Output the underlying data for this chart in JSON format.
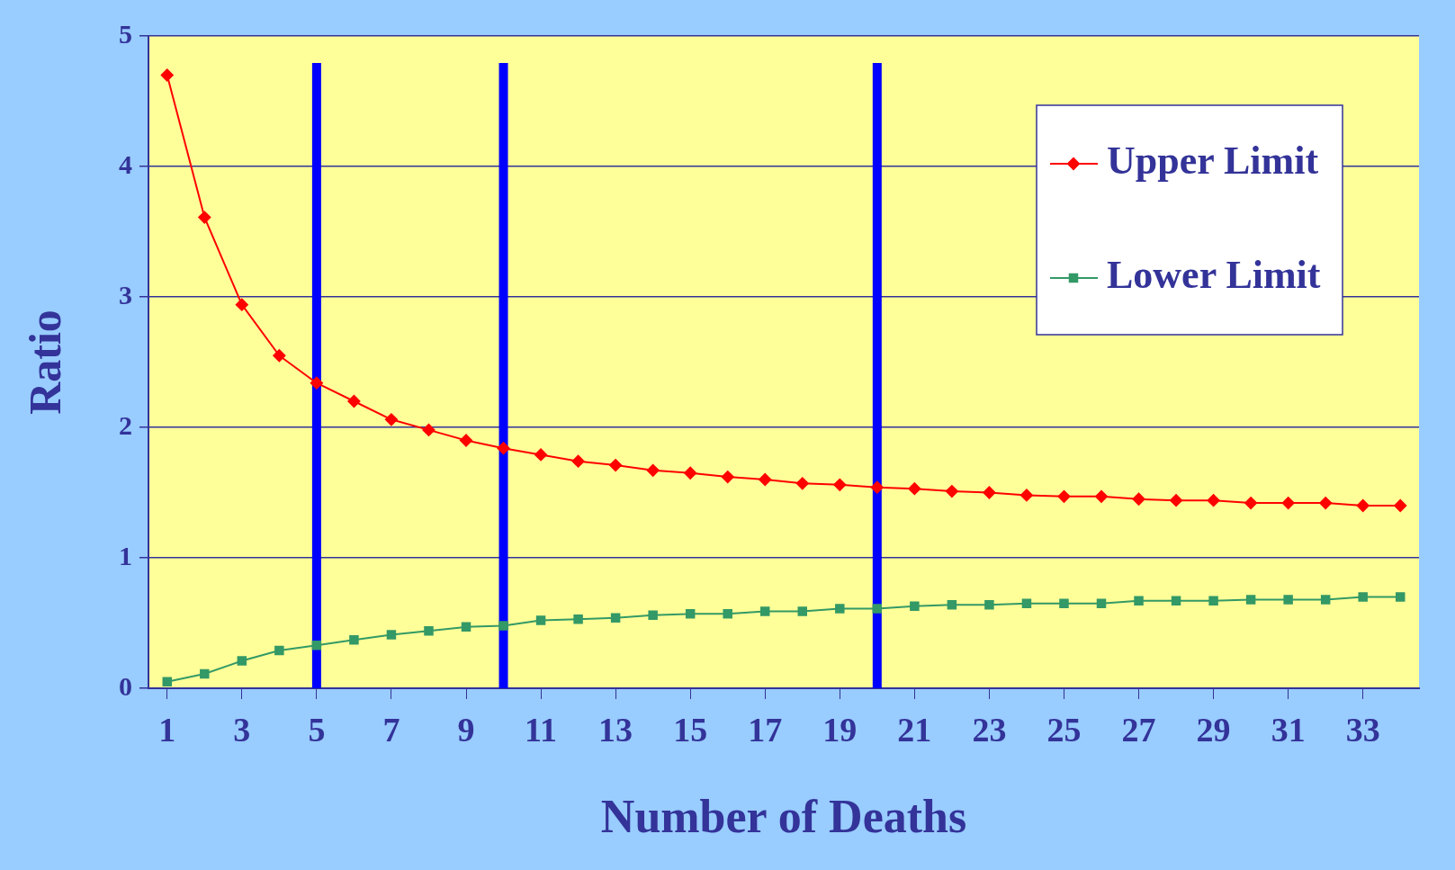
{
  "chart_data": {
    "type": "line",
    "xlabel": "Number of Deaths",
    "ylabel": "Ratio",
    "x": [
      1,
      2,
      3,
      4,
      5,
      6,
      7,
      8,
      9,
      10,
      11,
      12,
      13,
      14,
      15,
      16,
      17,
      18,
      19,
      20,
      21,
      22,
      23,
      24,
      25,
      26,
      27,
      28,
      29,
      30,
      31,
      32,
      33,
      34
    ],
    "xlim": [
      0.5,
      34.5
    ],
    "xticks": [
      1,
      3,
      5,
      7,
      9,
      11,
      13,
      15,
      17,
      19,
      21,
      23,
      25,
      27,
      29,
      31,
      33
    ],
    "ylim": [
      0,
      5
    ],
    "yticks": [
      0,
      1,
      2,
      3,
      4,
      5
    ],
    "grid": "y",
    "legend": "top right",
    "series": [
      {
        "name": "Upper Limit",
        "color": "#ff0000",
        "marker": "diamond",
        "values": [
          4.7,
          3.61,
          2.94,
          2.55,
          2.34,
          2.2,
          2.06,
          1.98,
          1.9,
          1.84,
          1.79,
          1.74,
          1.71,
          1.67,
          1.65,
          1.62,
          1.6,
          1.57,
          1.56,
          1.54,
          1.53,
          1.51,
          1.5,
          1.48,
          1.47,
          1.47,
          1.45,
          1.44,
          1.44,
          1.42,
          1.42,
          1.42,
          1.4,
          1.4
        ]
      },
      {
        "name": "Lower Limit",
        "color": "#339966",
        "marker": "square",
        "values": [
          0.05,
          0.11,
          0.21,
          0.29,
          0.33,
          0.37,
          0.41,
          0.44,
          0.47,
          0.48,
          0.52,
          0.53,
          0.54,
          0.56,
          0.57,
          0.57,
          0.59,
          0.59,
          0.61,
          0.61,
          0.63,
          0.64,
          0.64,
          0.65,
          0.65,
          0.65,
          0.67,
          0.67,
          0.67,
          0.68,
          0.68,
          0.68,
          0.7,
          0.7
        ]
      }
    ],
    "ref_lines": [
      {
        "axis": "x",
        "value": 5,
        "color": "#0000ff"
      },
      {
        "axis": "x",
        "value": 10,
        "color": "#0000ff"
      },
      {
        "axis": "x",
        "value": 20,
        "color": "#0000ff"
      }
    ]
  }
}
